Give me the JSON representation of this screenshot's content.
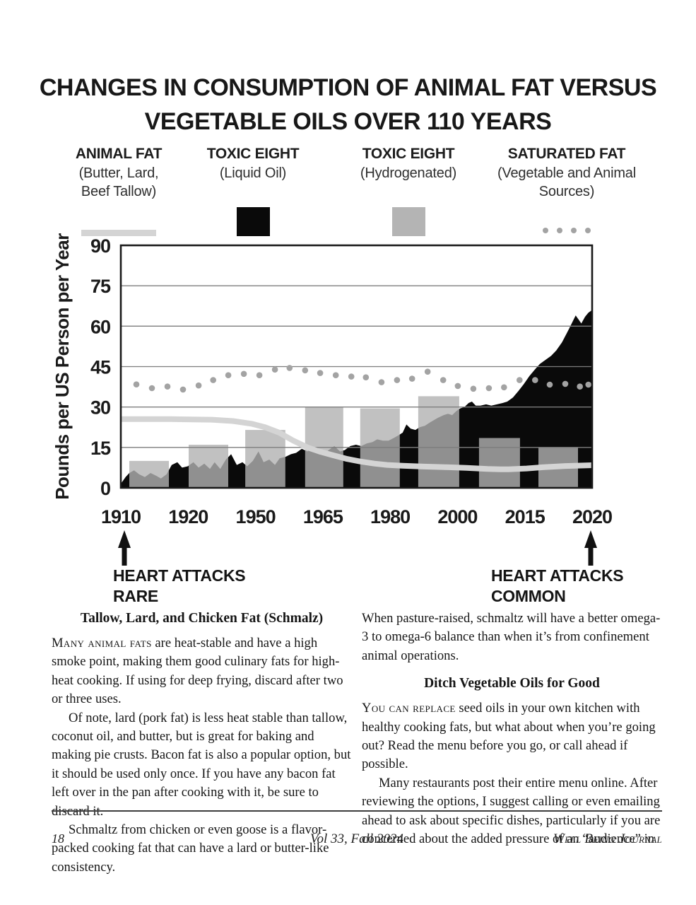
{
  "title": {
    "line1": "CHANGES IN CONSUMPTION OF ANIMAL FAT VERSUS",
    "line2": "VEGETABLE OILS OVER 110 YEARS"
  },
  "colors": {
    "animal_fat_line": "#d4d4d4",
    "liquid_oil": "#0a0a0a",
    "hydrogenated_bar": "#b4b4b4",
    "hydrogenated_bar_overlay": "rgba(178,178,178,0.8)",
    "saturated_dots": "#a3a3a3",
    "gridline": "#7d7d7d",
    "frame": "#191919"
  },
  "legend": [
    {
      "title": "ANIMAL FAT",
      "subtitle": "(Butter, Lard,\nBeef Tallow)",
      "swatch": "line"
    },
    {
      "title": "TOXIC EIGHT",
      "subtitle": "(Liquid Oil)",
      "swatch": "black-square"
    },
    {
      "title": "TOXIC  EIGHT",
      "subtitle": "(Hydrogenated)",
      "swatch": "gray-square"
    },
    {
      "title": "SATURATED FAT",
      "subtitle": "(Vegetable and Animal\nSources)",
      "swatch": "dots"
    }
  ],
  "chart_data": {
    "type": "mixed: area + bar + line + scatter",
    "title": "Changes in consumption of animal fat versus vegetable oils over 110 years",
    "ylabel": "Pounds per US Person per Year",
    "ylim": [
      0,
      90
    ],
    "yticks": [
      0,
      15,
      30,
      45,
      60,
      75,
      90
    ],
    "xticklabels": [
      "1910",
      "1920",
      "1950",
      "1965",
      "1980",
      "2000",
      "2015",
      "2020"
    ],
    "x_unit": "fraction of plot width; year axis is non-linear (labels evenly spaced)",
    "grid": "horizontal gridlines at each y tick",
    "series": [
      {
        "name": "Toxic Eight (Liquid Oil)",
        "type": "area",
        "color": "#0a0a0a",
        "points": [
          [
            0,
            1.5
          ],
          [
            0.01,
            4
          ],
          [
            0.018,
            5.5
          ],
          [
            0.028,
            6.5
          ],
          [
            0.039,
            5
          ],
          [
            0.051,
            4
          ],
          [
            0.063,
            5.5
          ],
          [
            0.075,
            4.5
          ],
          [
            0.085,
            3.5
          ],
          [
            0.097,
            5
          ],
          [
            0.108,
            8.5
          ],
          [
            0.12,
            9.5
          ],
          [
            0.13,
            7.5
          ],
          [
            0.142,
            8
          ],
          [
            0.154,
            9.5
          ],
          [
            0.165,
            7.5
          ],
          [
            0.177,
            9
          ],
          [
            0.189,
            7
          ],
          [
            0.199,
            9.5
          ],
          [
            0.211,
            7
          ],
          [
            0.223,
            10.5
          ],
          [
            0.234,
            12.5
          ],
          [
            0.246,
            8.5
          ],
          [
            0.258,
            9.5
          ],
          [
            0.268,
            8
          ],
          [
            0.28,
            10
          ],
          [
            0.292,
            13.5
          ],
          [
            0.303,
            9.5
          ],
          [
            0.315,
            10.5
          ],
          [
            0.327,
            8.5
          ],
          [
            0.337,
            11
          ],
          [
            0.349,
            11.5
          ],
          [
            0.361,
            12.5
          ],
          [
            0.372,
            13
          ],
          [
            0.384,
            14.5
          ],
          [
            0.396,
            13.5
          ],
          [
            0.406,
            15
          ],
          [
            0.418,
            13
          ],
          [
            0.43,
            12.5
          ],
          [
            0.441,
            14
          ],
          [
            0.453,
            15.5
          ],
          [
            0.465,
            13.5
          ],
          [
            0.475,
            14
          ],
          [
            0.487,
            15.5
          ],
          [
            0.499,
            16
          ],
          [
            0.51,
            15.5
          ],
          [
            0.522,
            16.5
          ],
          [
            0.534,
            17
          ],
          [
            0.544,
            18
          ],
          [
            0.556,
            17.5
          ],
          [
            0.568,
            17.5
          ],
          [
            0.579,
            18.5
          ],
          [
            0.589,
            19.5
          ],
          [
            0.598,
            20.5
          ],
          [
            0.606,
            23.5
          ],
          [
            0.615,
            22
          ],
          [
            0.625,
            21.5
          ],
          [
            0.634,
            22.5
          ],
          [
            0.645,
            23
          ],
          [
            0.658,
            24.5
          ],
          [
            0.673,
            26
          ],
          [
            0.685,
            27
          ],
          [
            0.694,
            27.5
          ],
          [
            0.703,
            27
          ],
          [
            0.712,
            28.5
          ],
          [
            0.72,
            29.5
          ],
          [
            0.729,
            30
          ],
          [
            0.738,
            31.5
          ],
          [
            0.745,
            32
          ],
          [
            0.753,
            30.5
          ],
          [
            0.763,
            30.5
          ],
          [
            0.775,
            31
          ],
          [
            0.786,
            30.5
          ],
          [
            0.798,
            31
          ],
          [
            0.81,
            31.5
          ],
          [
            0.82,
            32
          ],
          [
            0.832,
            33.5
          ],
          [
            0.844,
            36
          ],
          [
            0.855,
            38.5
          ],
          [
            0.867,
            41.5
          ],
          [
            0.879,
            44
          ],
          [
            0.889,
            46
          ],
          [
            0.901,
            47.5
          ],
          [
            0.913,
            49
          ],
          [
            0.924,
            51
          ],
          [
            0.936,
            54
          ],
          [
            0.948,
            58
          ],
          [
            0.958,
            61.5
          ],
          [
            0.965,
            64
          ],
          [
            0.971,
            62.5
          ],
          [
            0.977,
            61
          ],
          [
            0.985,
            63.5
          ],
          [
            0.992,
            65
          ],
          [
            1,
            66
          ]
        ]
      },
      {
        "name": "Toxic Eight (Hydrogenated)",
        "type": "bars",
        "color": "rgba(178,178,178,0.8)",
        "bars": [
          {
            "x0": 0.018,
            "x1": 0.102,
            "h": 10
          },
          {
            "x0": 0.144,
            "x1": 0.228,
            "h": 16
          },
          {
            "x0": 0.264,
            "x1": 0.349,
            "h": 21.5
          },
          {
            "x0": 0.391,
            "x1": 0.472,
            "h": 30
          },
          {
            "x0": 0.508,
            "x1": 0.592,
            "h": 29.5
          },
          {
            "x0": 0.631,
            "x1": 0.718,
            "h": 34
          },
          {
            "x0": 0.76,
            "x1": 0.847,
            "h": 18.5
          },
          {
            "x0": 0.886,
            "x1": 0.97,
            "h": 15
          }
        ]
      },
      {
        "name": "Animal Fat (Butter, Lard, Beef Tallow)",
        "type": "line",
        "color": "#d4d4d4",
        "points": [
          [
            0,
            25.5
          ],
          [
            0.103,
            25.5
          ],
          [
            0.193,
            25.3
          ],
          [
            0.238,
            24.8
          ],
          [
            0.277,
            23.8
          ],
          [
            0.306,
            22.5
          ],
          [
            0.336,
            20.5
          ],
          [
            0.366,
            17.5
          ],
          [
            0.396,
            15
          ],
          [
            0.421,
            13.5
          ],
          [
            0.448,
            12.2
          ],
          [
            0.478,
            10.8
          ],
          [
            0.508,
            9.8
          ],
          [
            0.538,
            9
          ],
          [
            0.565,
            8.5
          ],
          [
            0.598,
            8.2
          ],
          [
            0.643,
            7.9
          ],
          [
            0.688,
            7.7
          ],
          [
            0.733,
            7.4
          ],
          [
            0.778,
            7
          ],
          [
            0.805,
            6.9
          ],
          [
            0.823,
            6.9
          ],
          [
            0.861,
            7.2
          ],
          [
            0.898,
            7.7
          ],
          [
            0.943,
            8.1
          ],
          [
            1,
            8.4
          ]
        ]
      },
      {
        "name": "Saturated Fat (Vegetable and Animal Sources)",
        "type": "scatter",
        "color": "#a3a3a3",
        "points": [
          [
            0.033,
            38.4
          ],
          [
            0.066,
            37
          ],
          [
            0.099,
            37.6
          ],
          [
            0.132,
            36.5
          ],
          [
            0.165,
            38
          ],
          [
            0.196,
            40
          ],
          [
            0.228,
            41.8
          ],
          [
            0.261,
            42.3
          ],
          [
            0.294,
            41.8
          ],
          [
            0.327,
            43.9
          ],
          [
            0.358,
            44.5
          ],
          [
            0.391,
            43.6
          ],
          [
            0.423,
            42.6
          ],
          [
            0.456,
            41.8
          ],
          [
            0.489,
            41.3
          ],
          [
            0.52,
            41
          ],
          [
            0.553,
            39.2
          ],
          [
            0.586,
            40
          ],
          [
            0.618,
            40.5
          ],
          [
            0.651,
            43.1
          ],
          [
            0.684,
            40
          ],
          [
            0.715,
            37.8
          ],
          [
            0.748,
            36.8
          ],
          [
            0.781,
            37
          ],
          [
            0.813,
            37.3
          ],
          [
            0.846,
            40
          ],
          [
            0.879,
            40
          ],
          [
            0.91,
            38.3
          ],
          [
            0.943,
            38.6
          ],
          [
            0.974,
            37.6
          ],
          [
            0.992,
            38.3
          ]
        ]
      }
    ],
    "annotations": [
      {
        "text": "HEART ATTACKS\nRARE",
        "at": "1910, below axis, with up arrow"
      },
      {
        "text": "HEART ATTACKS\nCOMMON",
        "at": "2020, below axis, with up arrow"
      }
    ]
  },
  "annotations": {
    "left": "HEART ATTACKS\nRARE",
    "right": "HEART ATTACKS\nCOMMON"
  },
  "article": {
    "left": {
      "heading": "Tallow, Lard, and Chicken Fat (Schmalz)",
      "para1_lead": "Many animal fats",
      "para1_rest": " are heat-stable and have a high smoke point, making them good culinary fats for high-heat cooking. If using for deep frying, discard after two or three uses.",
      "para2": "Of note, lard (pork fat) is less heat stable than tallow, coconut oil, and butter, but is great for baking and making pie crusts. Bacon fat is also a popular option, but it should be used only once. If you have any bacon fat left over in the pan after cooking with it, be sure to discard it.",
      "para3": "Schmaltz from chicken or even goose is a flavor-packed cooking fat that can have a lard or butter-like consistency."
    },
    "right": {
      "para1": "When pasture-raised, schmaltz will have a better omega-3 to omega-6 balance than when it’s from confinement animal operations.",
      "heading": "Ditch Vegetable Oils for Good",
      "para2_lead": "You can replace",
      "para2_rest": " seed oils in your own kitchen with healthy cooking fats, but what about when you’re going out? Read the menu before you go, or call ahead if possible.",
      "para3": "Many restaurants post their entire menu online. After reviewing the options, I suggest calling or even emailing ahead to ask about specific dishes, particularly if you are concerned about the added pressure of an “audience” in"
    }
  },
  "footer": {
    "page_number": "18",
    "center": "Vol 33, Fall 2024",
    "right": "Well Being Journal"
  }
}
